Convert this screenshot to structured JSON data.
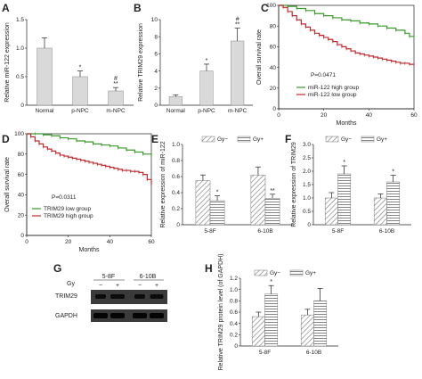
{
  "panels": {
    "A": {
      "letter": "A"
    },
    "B": {
      "letter": "B"
    },
    "C": {
      "letter": "C"
    },
    "D": {
      "letter": "D"
    },
    "E": {
      "letter": "E"
    },
    "F": {
      "letter": "F"
    },
    "G": {
      "letter": "G"
    },
    "H": {
      "letter": "H"
    }
  },
  "blot": {
    "gy_label": "Gy",
    "groups": [
      "5-8F",
      "6-10B"
    ],
    "lanes": [
      "−",
      "+",
      "−",
      "+"
    ],
    "rows": [
      "TRIM29",
      "GAPDH"
    ]
  },
  "chart_data": [
    {
      "id": "A",
      "type": "bar",
      "categories": [
        "Normal",
        "p-NPC",
        "m-NPC"
      ],
      "values": [
        1.0,
        0.5,
        0.25
      ],
      "errors": [
        0.18,
        0.1,
        0.06
      ],
      "annotations": [
        "",
        "*",
        "#\n**"
      ],
      "title": "",
      "xlabel": "",
      "ylabel": "Relative miR-122 expression",
      "ylim": [
        0,
        1.5
      ],
      "yticks": [
        "0",
        "0.5",
        "1.0",
        "1.5"
      ]
    },
    {
      "id": "B",
      "type": "bar",
      "categories": [
        "Normal",
        "p-NPC",
        "m-NPC"
      ],
      "values": [
        1.0,
        4.0,
        7.5
      ],
      "errors": [
        0.2,
        0.8,
        1.5
      ],
      "annotations": [
        "",
        "*",
        "#\n**"
      ],
      "title": "",
      "xlabel": "",
      "ylabel": "Relative TRIM29 expression",
      "ylim": [
        0,
        10
      ],
      "yticks": [
        "0",
        "2",
        "4",
        "6",
        "8",
        "10"
      ]
    },
    {
      "id": "C",
      "type": "line",
      "title": "",
      "xlabel": "Months",
      "ylabel": "Overall survival rate",
      "xlim": [
        0,
        60
      ],
      "ylim": [
        0,
        100
      ],
      "xticks": [
        "0",
        "20",
        "40",
        "60"
      ],
      "yticks": [
        "0",
        "20",
        "40",
        "60",
        "80",
        "100"
      ],
      "p_value": "P=0.0471",
      "series": [
        {
          "name": "miR-122 high group",
          "color": "#3a9a2a",
          "x": [
            0,
            4,
            8,
            12,
            16,
            20,
            24,
            28,
            32,
            36,
            40,
            44,
            48,
            52,
            56,
            58,
            60
          ],
          "y": [
            100,
            99,
            97,
            95,
            92,
            90,
            88,
            86,
            85,
            83,
            82,
            80,
            78,
            76,
            73,
            70,
            70
          ]
        },
        {
          "name": "miR-122 low group",
          "color": "#c0282d",
          "x": [
            0,
            2,
            4,
            6,
            8,
            10,
            12,
            14,
            16,
            18,
            20,
            22,
            24,
            26,
            28,
            30,
            32,
            34,
            36,
            38,
            40,
            42,
            44,
            46,
            48,
            50,
            52,
            54,
            56,
            58,
            60
          ],
          "y": [
            100,
            98,
            94,
            90,
            86,
            82,
            79,
            76,
            73,
            71,
            69,
            67,
            65,
            62,
            60,
            58,
            56,
            54,
            53,
            52,
            51,
            50,
            49,
            48,
            47,
            46,
            45,
            44,
            44,
            43,
            43
          ]
        }
      ]
    },
    {
      "id": "D",
      "type": "line",
      "title": "",
      "xlabel": "Months",
      "ylabel": "Overall survival rate",
      "xlim": [
        0,
        60
      ],
      "ylim": [
        0,
        100
      ],
      "xticks": [
        "0",
        "20",
        "40",
        "60"
      ],
      "yticks": [
        "0",
        "20",
        "40",
        "60",
        "80",
        "100"
      ],
      "p_value": "P=0.0311",
      "series": [
        {
          "name": "TRIM29 low group",
          "color": "#3a9a2a",
          "x": [
            0,
            4,
            8,
            12,
            16,
            20,
            24,
            28,
            32,
            36,
            40,
            44,
            48,
            52,
            56,
            60
          ],
          "y": [
            100,
            100,
            99,
            98,
            96,
            95,
            93,
            92,
            90,
            89,
            88,
            86,
            84,
            82,
            80,
            78
          ]
        },
        {
          "name": "TRIM29 high group",
          "color": "#c0282d",
          "x": [
            0,
            2,
            4,
            6,
            8,
            10,
            12,
            14,
            16,
            18,
            20,
            22,
            24,
            26,
            28,
            30,
            32,
            34,
            36,
            38,
            40,
            42,
            44,
            46,
            48,
            50,
            52,
            54,
            56,
            58,
            60
          ],
          "y": [
            100,
            97,
            93,
            90,
            87,
            85,
            83,
            81,
            79,
            78,
            77,
            76,
            75,
            74,
            73,
            72,
            71,
            70,
            69,
            68,
            67,
            66,
            65,
            64,
            64,
            63,
            63,
            62,
            60,
            55,
            50
          ]
        }
      ]
    },
    {
      "id": "E",
      "type": "bar",
      "categories": [
        "5-8F",
        "6-10B"
      ],
      "series": [
        {
          "name": "Gy−",
          "values": [
            0.55,
            0.62
          ],
          "errors": [
            0.07,
            0.1
          ],
          "annotations": [
            "",
            ""
          ]
        },
        {
          "name": "Gy+",
          "values": [
            0.3,
            0.33
          ],
          "errors": [
            0.06,
            0.05
          ],
          "annotations": [
            "*",
            "**"
          ]
        }
      ],
      "title": "",
      "xlabel": "",
      "ylabel": "Relative expression of miR-122",
      "ylim": [
        0,
        1.0
      ],
      "yticks": [
        "0",
        "0.2",
        "0.4",
        "0.6",
        "0.8",
        "1.0"
      ]
    },
    {
      "id": "F",
      "type": "bar",
      "categories": [
        "5-8F",
        "6-10B"
      ],
      "series": [
        {
          "name": "Gy−",
          "values": [
            1.0,
            1.0
          ],
          "errors": [
            0.2,
            0.15
          ],
          "annotations": [
            "",
            ""
          ]
        },
        {
          "name": "Gy+",
          "values": [
            1.9,
            1.6
          ],
          "errors": [
            0.3,
            0.25
          ],
          "annotations": [
            "*",
            "*"
          ]
        }
      ],
      "title": "",
      "xlabel": "",
      "ylabel": "Relative expression of TRIM29",
      "ylim": [
        0,
        3.0
      ],
      "yticks": [
        "0",
        "0.5",
        "1.0",
        "1.5",
        "2.0",
        "2.5",
        "3.0"
      ]
    },
    {
      "id": "H",
      "type": "bar",
      "categories": [
        "5-8F",
        "6-10B"
      ],
      "series": [
        {
          "name": "Gy−",
          "values": [
            0.52,
            0.55
          ],
          "errors": [
            0.08,
            0.1
          ],
          "annotations": [
            "",
            ""
          ]
        },
        {
          "name": "Gy+",
          "values": [
            0.92,
            0.8
          ],
          "errors": [
            0.15,
            0.22
          ],
          "annotations": [
            "*",
            ""
          ]
        }
      ],
      "title": "",
      "xlabel": "",
      "ylabel": "Relative TRIM29 protein level (of GAPDH)",
      "ylim": [
        0,
        1.2
      ],
      "yticks": [
        "0",
        "0.2",
        "0.4",
        "0.6",
        "0.8",
        "1.0",
        "1.2"
      ]
    }
  ]
}
